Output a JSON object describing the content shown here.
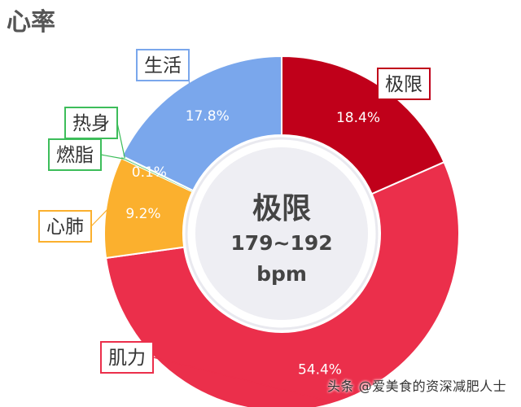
{
  "page": {
    "title": "心率"
  },
  "watermark": "头条 @爱美食的资深减肥人士",
  "colors": {
    "极限": "#c0001a",
    "肌力": "#eb2f4b",
    "心肺": "#fbb02e",
    "燃脂": "#3dbd5a",
    "热身": "#3dbd5a",
    "生活": "#7aa7ec"
  },
  "chart_data": {
    "type": "pie",
    "donut": true,
    "slices": [
      {
        "label": "极限",
        "value": 18.4,
        "value_label": "18.4%"
      },
      {
        "label": "肌力",
        "value": 54.4,
        "value_label": "54.4%"
      },
      {
        "label": "心肺",
        "value": 9.2,
        "value_label": "9.2%"
      },
      {
        "label": "燃脂",
        "value": 0.1,
        "value_label": "0.1%"
      },
      {
        "label": "热身",
        "value": 0.1,
        "value_label": ""
      },
      {
        "label": "生活",
        "value": 17.8,
        "value_label": "17.8%"
      }
    ],
    "center": {
      "title": "极限",
      "range": "179~192",
      "unit": "bpm"
    }
  }
}
